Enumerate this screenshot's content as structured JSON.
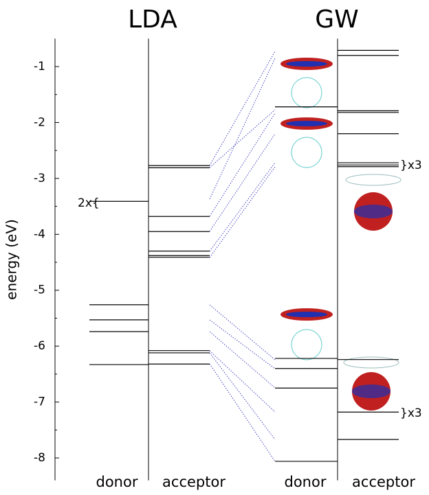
{
  "chart_data": {
    "type": "levels",
    "ylabel": "energy (eV)",
    "ylim": [
      -8.4,
      -0.5
    ],
    "yticks": [
      -1,
      -2,
      -3,
      -4,
      -5,
      -6,
      -7,
      -8
    ],
    "color": "#000000",
    "panels": [
      {
        "title": "LDA",
        "columns": [
          {
            "name": "donor",
            "levels": [
              -3.41,
              -5.26,
              -5.53,
              -5.74,
              -6.33
            ]
          },
          {
            "name": "acceptor",
            "levels": [
              -2.77,
              -2.81,
              -3.68,
              -3.95,
              -4.3,
              -4.38,
              -4.41,
              -6.08,
              -6.12,
              -6.32
            ]
          }
        ]
      },
      {
        "title": "GW",
        "columns": [
          {
            "name": "donor",
            "levels": [
              -1.72,
              -6.22,
              -6.4,
              -6.75,
              -8.06
            ]
          },
          {
            "name": "acceptor",
            "levels": [
              -0.71,
              -0.8,
              -1.79,
              -1.82,
              -2.2,
              -2.72,
              -2.76,
              -2.79,
              -6.24,
              -7.18,
              -7.67
            ]
          }
        ]
      }
    ],
    "annotations": [
      "2x{",
      "}x3",
      "}x3"
    ]
  }
}
